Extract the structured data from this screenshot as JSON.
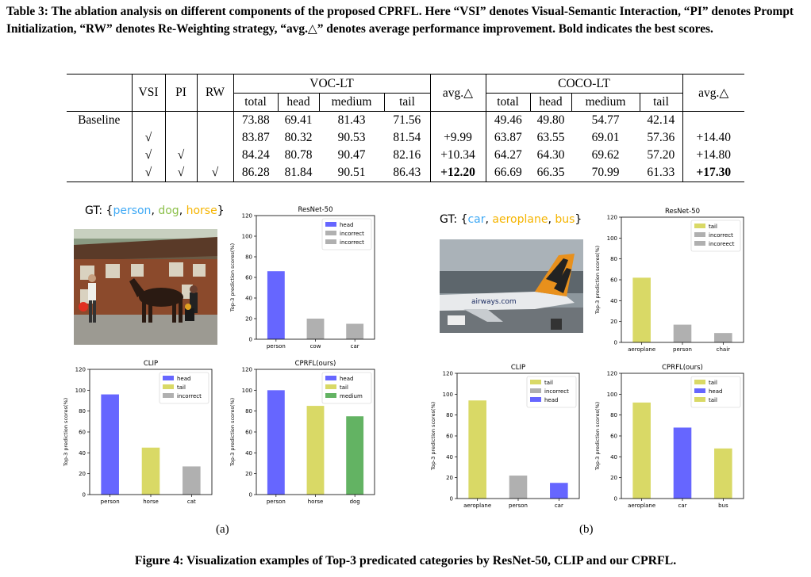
{
  "table_caption": "Table 3: The ablation analysis on different components of the proposed CPRFL. Here “VSI” denotes Visual-Semantic Interaction, “PI” denotes Prompt Initialization, “RW” denotes Re-Weighting strategy, “avg.△” denotes average performance improvement. Bold indicates the best scores.",
  "table": {
    "headers": {
      "vsi": "VSI",
      "pi": "PI",
      "rw": "RW",
      "voc": "VOC-LT",
      "coco": "COCO-LT",
      "avg": "avg.△",
      "total": "total",
      "head": "head",
      "medium": "medium",
      "tail": "tail"
    },
    "rows": [
      {
        "label": "Baseline",
        "vsi": "",
        "pi": "",
        "rw": "",
        "voc": [
          "73.88",
          "69.41",
          "81.43",
          "71.56"
        ],
        "voc_avg": "",
        "coco": [
          "49.46",
          "49.80",
          "54.77",
          "42.14"
        ],
        "coco_avg": ""
      },
      {
        "label": "",
        "vsi": "√",
        "pi": "",
        "rw": "",
        "voc": [
          "83.87",
          "80.32",
          "90.53",
          "81.54"
        ],
        "voc_avg": "+9.99",
        "coco": [
          "63.87",
          "63.55",
          "69.01",
          "57.36"
        ],
        "coco_avg": "+14.40"
      },
      {
        "label": "",
        "vsi": "√",
        "pi": "√",
        "rw": "",
        "voc": [
          "84.24",
          "80.78",
          "90.47",
          "82.16"
        ],
        "voc_avg": "+10.34",
        "coco": [
          "64.27",
          "64.30",
          "69.62",
          "57.20"
        ],
        "coco_avg": "+14.80"
      },
      {
        "label": "",
        "vsi": "√",
        "pi": "√",
        "rw": "√",
        "voc": [
          "86.28",
          "81.84",
          "90.51",
          "86.43"
        ],
        "voc_avg": "+12.20",
        "coco": [
          "66.69",
          "66.35",
          "70.99",
          "61.33"
        ],
        "coco_avg": "+17.30"
      }
    ]
  },
  "colors": {
    "head": "#6666ff",
    "tail": "#d9d966",
    "incorrect": "#b0b0b0",
    "medium": "#63b363",
    "person": "#3fa9f5",
    "dog": "#8cc04a",
    "horse": "#f5b400",
    "car": "#3fa9f5",
    "aeroplane": "#f5b400",
    "bus": "#f5b400"
  },
  "panel_a": {
    "gt_prefix": "GT: {",
    "gt_items": [
      {
        "text": "person",
        "key": "person"
      },
      {
        "text": "dog",
        "key": "dog"
      },
      {
        "text": "horse",
        "key": "horse"
      }
    ],
    "gt_suffix": "}",
    "label": "(a)"
  },
  "panel_b": {
    "gt_prefix": "GT: {",
    "gt_items": [
      {
        "text": "car",
        "key": "car"
      },
      {
        "text": "aeroplane",
        "key": "aeroplane"
      },
      {
        "text": "bus",
        "key": "bus"
      }
    ],
    "gt_suffix": "}",
    "label": "(b)"
  },
  "chart_data": [
    {
      "type": "bar",
      "panel": "a",
      "title": "ResNet-50",
      "ylabel": "Top-3 prediction scores(%)",
      "ylim": [
        0,
        120
      ],
      "yticks": [
        0,
        20,
        40,
        60,
        80,
        100,
        120
      ],
      "categories": [
        "person",
        "cow",
        "car"
      ],
      "values": [
        66,
        20,
        15
      ],
      "colors": [
        "head",
        "incorrect",
        "incorrect"
      ],
      "legend": [
        "head",
        "incorrect",
        "incorrect"
      ],
      "legend_position": "top-right"
    },
    {
      "type": "bar",
      "panel": "a",
      "title": "CLIP",
      "ylabel": "Top-3 prediction scores(%)",
      "ylim": [
        0,
        120
      ],
      "yticks": [
        0,
        20,
        40,
        60,
        80,
        100,
        120
      ],
      "categories": [
        "person",
        "horse",
        "cat"
      ],
      "values": [
        96,
        45,
        27
      ],
      "colors": [
        "head",
        "tail",
        "incorrect"
      ],
      "legend": [
        "head",
        "tail",
        "incorrect"
      ],
      "legend_position": "top-right"
    },
    {
      "type": "bar",
      "panel": "a",
      "title": "CPRFL(ours)",
      "ylabel": "Top-3 prediction scores(%)",
      "ylim": [
        0,
        120
      ],
      "yticks": [
        0,
        20,
        40,
        60,
        80,
        100,
        120
      ],
      "categories": [
        "person",
        "horse",
        "dog"
      ],
      "values": [
        100,
        85,
        75
      ],
      "colors": [
        "head",
        "tail",
        "medium"
      ],
      "legend": [
        "head",
        "tail",
        "medium"
      ],
      "legend_position": "top-right"
    },
    {
      "type": "bar",
      "panel": "b",
      "title": "ResNet-50",
      "ylabel": "Top-3 prediction scores(%)",
      "ylim": [
        0,
        120
      ],
      "yticks": [
        0,
        20,
        40,
        60,
        80,
        100,
        120
      ],
      "categories": [
        "aeroplane",
        "person",
        "chair"
      ],
      "values": [
        62,
        17,
        9
      ],
      "colors": [
        "tail",
        "incorrect",
        "incorrect"
      ],
      "legend": [
        "tail",
        "incorrect",
        "incoreect"
      ],
      "legend_position": "top-right"
    },
    {
      "type": "bar",
      "panel": "b",
      "title": "CLIP",
      "ylabel": "Top-3 prediction scores(%)",
      "ylim": [
        0,
        120
      ],
      "yticks": [
        0,
        20,
        40,
        60,
        80,
        100,
        120
      ],
      "categories": [
        "aeroplane",
        "person",
        "car"
      ],
      "values": [
        94,
        22,
        15
      ],
      "colors": [
        "tail",
        "incorrect",
        "head"
      ],
      "legend": [
        "tail",
        "incorrect",
        "head"
      ],
      "legend_position": "top-right"
    },
    {
      "type": "bar",
      "panel": "b",
      "title": "CPRFL(ours)",
      "ylabel": "Top-3 prediction scores(%)",
      "ylim": [
        0,
        120
      ],
      "yticks": [
        0,
        20,
        40,
        60,
        80,
        100,
        120
      ],
      "categories": [
        "aeroplane",
        "car",
        "bus"
      ],
      "values": [
        92,
        68,
        48
      ],
      "colors": [
        "tail",
        "head",
        "tail"
      ],
      "legend": [
        "tail",
        "head",
        "tail"
      ],
      "legend_position": "top-right"
    }
  ],
  "photo_b_text": "airways.com",
  "figure_caption": "Figure 4: Visualization examples of Top-3 predicated categories by ResNet-50, CLIP and our CPRFL."
}
